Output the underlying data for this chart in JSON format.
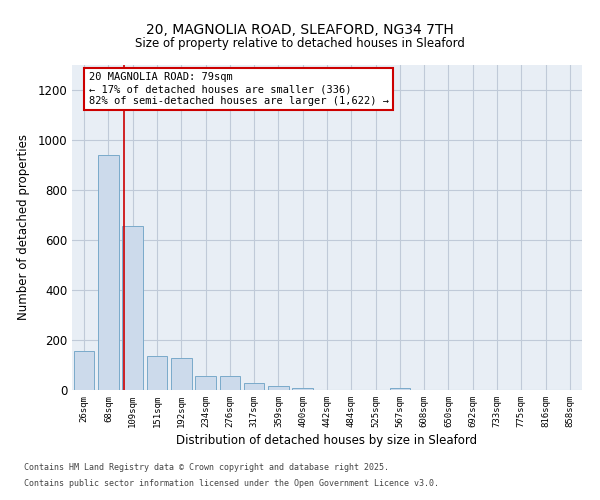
{
  "title_line1": "20, MAGNOLIA ROAD, SLEAFORD, NG34 7TH",
  "title_line2": "Size of property relative to detached houses in Sleaford",
  "xlabel": "Distribution of detached houses by size in Sleaford",
  "ylabel": "Number of detached properties",
  "bar_color": "#ccdaeb",
  "bar_edge_color": "#7aaaca",
  "categories": [
    "26sqm",
    "68sqm",
    "109sqm",
    "151sqm",
    "192sqm",
    "234sqm",
    "276sqm",
    "317sqm",
    "359sqm",
    "400sqm",
    "442sqm",
    "484sqm",
    "525sqm",
    "567sqm",
    "608sqm",
    "650sqm",
    "692sqm",
    "733sqm",
    "775sqm",
    "816sqm",
    "858sqm"
  ],
  "values": [
    155,
    940,
    655,
    135,
    130,
    58,
    55,
    30,
    15,
    8,
    0,
    0,
    0,
    8,
    0,
    0,
    0,
    0,
    0,
    0,
    0
  ],
  "ylim": [
    0,
    1300
  ],
  "yticks": [
    0,
    200,
    400,
    600,
    800,
    1000,
    1200
  ],
  "red_line_x": 1.63,
  "annotation_text": "20 MAGNOLIA ROAD: 79sqm\n← 17% of detached houses are smaller (336)\n82% of semi-detached houses are larger (1,622) →",
  "annotation_box_color": "#ffffff",
  "annotation_box_edge": "#cc0000",
  "vline_color": "#cc0000",
  "grid_color": "#c0cad8",
  "bg_color": "#e8eef5",
  "footer_line1": "Contains HM Land Registry data © Crown copyright and database right 2025.",
  "footer_line2": "Contains public sector information licensed under the Open Government Licence v3.0."
}
